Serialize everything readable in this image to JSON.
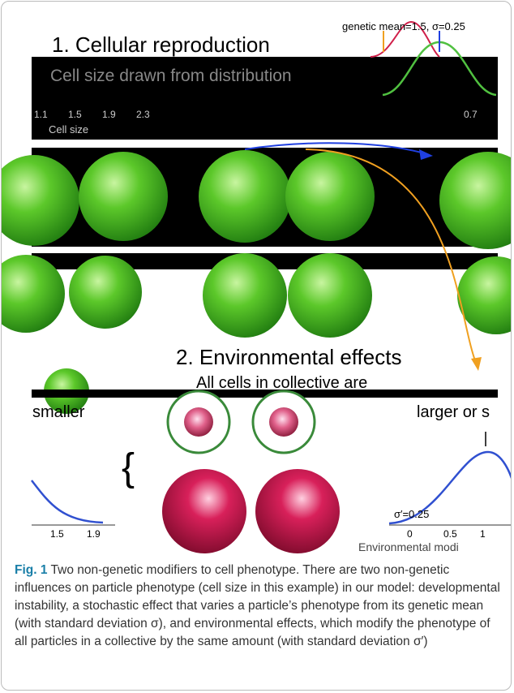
{
  "figure": {
    "panel1_title": "1. Cellular reproduction",
    "panel1_subtitle": "Cell size drawn from distribution",
    "genetic_label": "genetic mean=1.5, σ=0.25",
    "cell_size_ticks": [
      "1.1",
      "1.5",
      "1.9",
      "2.3"
    ],
    "right_tick": "0.7",
    "cell_size_label": "Cell size",
    "panel2_title": "2. Environmental effects",
    "panel2_subtitle": "All cells in collective are",
    "smaller": "smaller",
    "larger": "larger or s",
    "sigma_prime": "σ′=0.25",
    "left_ticks": [
      "1.5",
      "1.9"
    ],
    "right_ticks": [
      "0",
      "0.5",
      "1"
    ],
    "env_label": "Environmental modi"
  },
  "caption": {
    "label": "Fig. 1",
    "text": "Two non-genetic modifiers to cell phenotype. There are two non-genetic influences on particle phenotype (cell size in this example) in our model: developmental instability, a stochastic effect that varies a particle’s phenotype from its genetic mean (with standard deviation σ), and environmental effects, which modify the phenotype of all particles in a collective by the same amount (with standard deviation σ′)"
  }
}
